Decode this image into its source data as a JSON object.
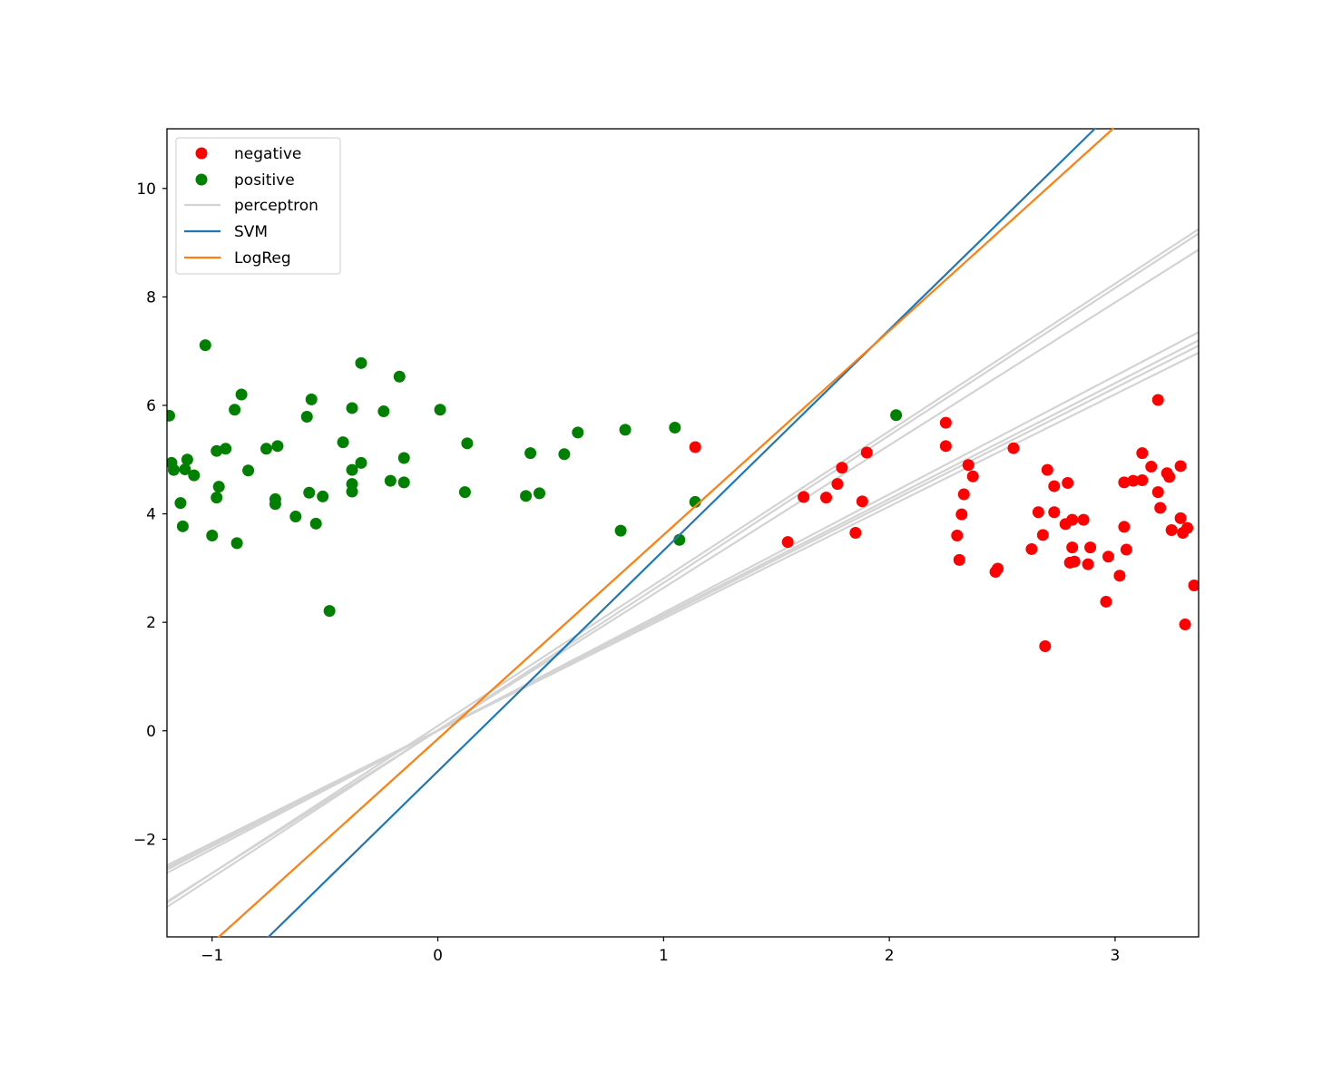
{
  "chart_data": {
    "type": "scatter",
    "title": "",
    "xlabel": "",
    "ylabel": "",
    "xlim": [
      -1.2,
      3.37
    ],
    "ylim": [
      -3.8,
      11.1
    ],
    "xticks": [
      -1,
      0,
      1,
      2,
      3
    ],
    "yticks": [
      -2,
      0,
      2,
      4,
      6,
      8,
      10
    ],
    "grid": false,
    "legend_position": "upper-left",
    "legend": [
      "negative",
      "positive",
      "perceptron",
      "SVM",
      "LogReg"
    ],
    "colors": {
      "negative": "#ff0000",
      "positive": "#008000",
      "perceptron": "#d3d3d3",
      "SVM": "#1f77b4",
      "LogReg": "#ff7f0e"
    },
    "series": [
      {
        "name": "negative",
        "kind": "points",
        "points": [
          [
            1.14,
            5.23
          ],
          [
            1.55,
            3.48
          ],
          [
            1.62,
            4.31
          ],
          [
            1.72,
            4.3
          ],
          [
            1.77,
            4.55
          ],
          [
            1.79,
            4.85
          ],
          [
            1.85,
            3.65
          ],
          [
            1.88,
            4.23
          ],
          [
            1.9,
            5.13
          ],
          [
            2.25,
            5.68
          ],
          [
            2.25,
            5.25
          ],
          [
            2.3,
            3.6
          ],
          [
            2.31,
            3.15
          ],
          [
            2.32,
            3.99
          ],
          [
            2.33,
            4.36
          ],
          [
            2.35,
            4.9
          ],
          [
            2.37,
            4.69
          ],
          [
            2.47,
            2.93
          ],
          [
            2.48,
            2.99
          ],
          [
            2.55,
            5.21
          ],
          [
            2.63,
            3.35
          ],
          [
            2.66,
            4.03
          ],
          [
            2.68,
            3.61
          ],
          [
            2.69,
            1.56
          ],
          [
            2.7,
            4.81
          ],
          [
            2.73,
            4.03
          ],
          [
            2.73,
            4.51
          ],
          [
            2.78,
            3.81
          ],
          [
            2.79,
            4.57
          ],
          [
            2.8,
            3.1
          ],
          [
            2.81,
            3.89
          ],
          [
            2.81,
            3.38
          ],
          [
            2.82,
            3.12
          ],
          [
            2.86,
            3.89
          ],
          [
            2.88,
            3.07
          ],
          [
            2.89,
            3.38
          ],
          [
            2.96,
            2.38
          ],
          [
            2.97,
            3.21
          ],
          [
            3.02,
            2.86
          ],
          [
            3.04,
            4.58
          ],
          [
            3.04,
            3.76
          ],
          [
            3.05,
            3.34
          ],
          [
            3.08,
            4.61
          ],
          [
            3.12,
            5.12
          ],
          [
            3.12,
            4.62
          ],
          [
            3.16,
            4.87
          ],
          [
            3.19,
            6.1
          ],
          [
            3.19,
            4.4
          ],
          [
            3.2,
            4.11
          ],
          [
            3.23,
            4.75
          ],
          [
            3.24,
            4.68
          ],
          [
            3.25,
            3.7
          ],
          [
            3.29,
            4.88
          ],
          [
            3.29,
            3.92
          ],
          [
            3.3,
            3.65
          ],
          [
            3.31,
            1.96
          ],
          [
            3.32,
            3.74
          ],
          [
            3.35,
            2.68
          ]
        ]
      },
      {
        "name": "positive",
        "kind": "points",
        "points": [
          [
            -1.19,
            5.81
          ],
          [
            -1.18,
            4.94
          ],
          [
            -1.17,
            4.81
          ],
          [
            -1.14,
            4.2
          ],
          [
            -1.13,
            3.77
          ],
          [
            -1.12,
            4.82
          ],
          [
            -1.11,
            5.0
          ],
          [
            -1.08,
            4.71
          ],
          [
            -1.03,
            7.11
          ],
          [
            -1.0,
            3.6
          ],
          [
            -0.98,
            4.3
          ],
          [
            -0.98,
            5.16
          ],
          [
            -0.97,
            4.5
          ],
          [
            -0.94,
            5.2
          ],
          [
            -0.9,
            5.92
          ],
          [
            -0.89,
            3.46
          ],
          [
            -0.87,
            6.2
          ],
          [
            -0.84,
            4.8
          ],
          [
            -0.76,
            5.2
          ],
          [
            -0.72,
            4.27
          ],
          [
            -0.72,
            4.18
          ],
          [
            -0.71,
            5.25
          ],
          [
            -0.63,
            3.95
          ],
          [
            -0.58,
            5.79
          ],
          [
            -0.57,
            4.39
          ],
          [
            -0.56,
            6.11
          ],
          [
            -0.54,
            3.82
          ],
          [
            -0.51,
            4.32
          ],
          [
            -0.48,
            2.21
          ],
          [
            -0.42,
            5.32
          ],
          [
            -0.38,
            4.81
          ],
          [
            -0.38,
            4.55
          ],
          [
            -0.38,
            4.41
          ],
          [
            -0.38,
            5.95
          ],
          [
            -0.34,
            4.94
          ],
          [
            -0.34,
            6.78
          ],
          [
            -0.24,
            5.89
          ],
          [
            -0.21,
            4.61
          ],
          [
            -0.17,
            6.53
          ],
          [
            -0.15,
            5.03
          ],
          [
            -0.15,
            4.58
          ],
          [
            0.01,
            5.92
          ],
          [
            0.12,
            4.4
          ],
          [
            0.13,
            5.3
          ],
          [
            0.39,
            4.33
          ],
          [
            0.41,
            5.12
          ],
          [
            0.45,
            4.38
          ],
          [
            0.56,
            5.1
          ],
          [
            0.62,
            5.5
          ],
          [
            0.81,
            3.69
          ],
          [
            0.83,
            5.55
          ],
          [
            1.05,
            5.59
          ],
          [
            1.07,
            3.52
          ],
          [
            1.14,
            4.22
          ],
          [
            2.03,
            5.82
          ]
        ]
      },
      {
        "name": "perceptron",
        "kind": "lines",
        "lines": [
          [
            [
              -1.2,
              -2.56
            ],
            [
              3.37,
              7.2
            ]
          ],
          [
            [
              -1.2,
              -2.48
            ],
            [
              3.37,
              6.97
            ]
          ],
          [
            [
              -1.2,
              -2.62
            ],
            [
              3.37,
              7.35
            ]
          ],
          [
            [
              -1.2,
              -2.52
            ],
            [
              3.37,
              7.1
            ]
          ],
          [
            [
              -1.2,
              -3.17
            ],
            [
              3.37,
              9.25
            ]
          ],
          [
            [
              -1.2,
              -3.25
            ],
            [
              3.37,
              9.17
            ]
          ],
          [
            [
              -1.2,
              -3.15
            ],
            [
              3.37,
              8.87
            ]
          ]
        ]
      },
      {
        "name": "SVM",
        "kind": "line",
        "line": [
          [
            -0.75,
            -3.8
          ],
          [
            2.91,
            11.1
          ]
        ]
      },
      {
        "name": "LogReg",
        "kind": "line",
        "line": [
          [
            -0.97,
            -3.8
          ],
          [
            2.99,
            11.1
          ]
        ]
      }
    ]
  }
}
